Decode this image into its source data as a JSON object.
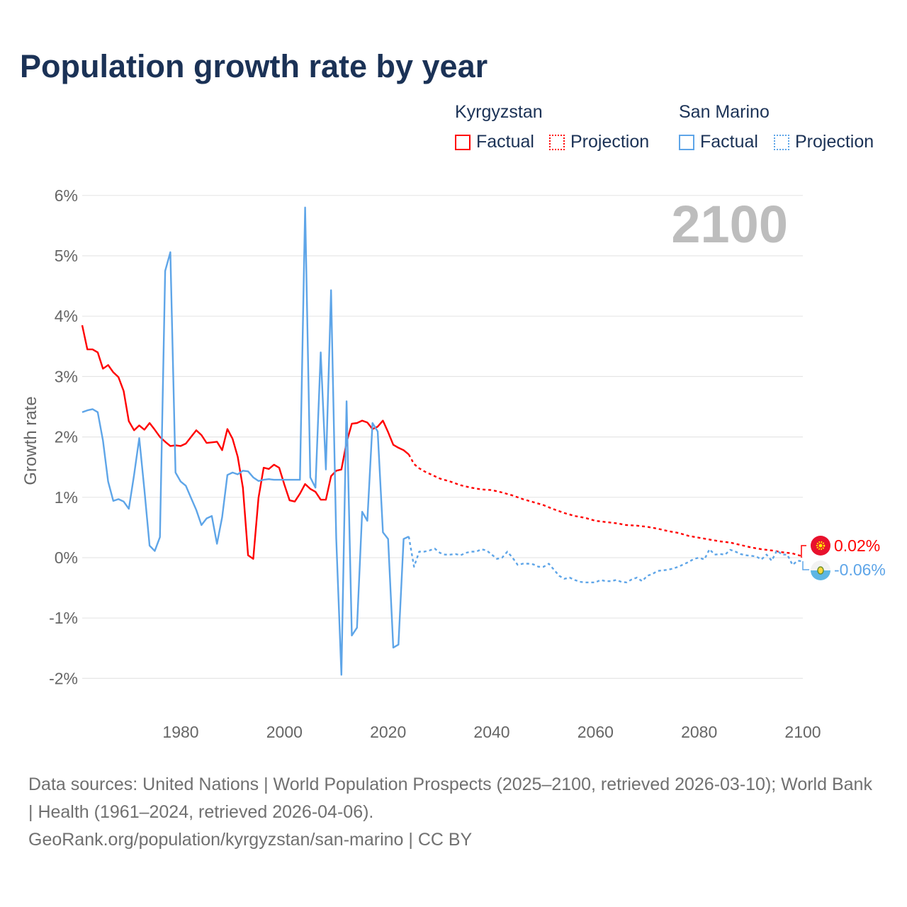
{
  "title": "Population growth rate by year",
  "legend": {
    "groups": [
      {
        "country": "Kyrgyzstan",
        "factual": "Factual",
        "projection": "Projection",
        "color": "#ff0000"
      },
      {
        "country": "San Marino",
        "factual": "Factual",
        "projection": "Projection",
        "color": "#5ea5e8"
      }
    ]
  },
  "footer": {
    "sources": "Data sources: United Nations | World Population Prospects (2025–2100, retrieved 2026-03-10); World Bank | Health (1961–2024, retrieved 2026-04-06).",
    "link": "GeoRank.org/population/kyrgyzstan/san-marino | CC BY"
  },
  "chart_data": {
    "type": "line",
    "title": "Population growth rate by year",
    "ylabel": "Growth rate",
    "xlabel": "",
    "year_display": "2100",
    "xlim": [
      1961,
      2100
    ],
    "ylim": [
      -2.5,
      6
    ],
    "yticks": [
      6,
      5,
      4,
      3,
      2,
      1,
      0,
      -1,
      -2
    ],
    "ytick_labels": [
      "6%",
      "5%",
      "4%",
      "3%",
      "2%",
      "1%",
      "0%",
      "-1%",
      "-2%"
    ],
    "xticks": [
      1980,
      2000,
      2020,
      2040,
      2060,
      2080,
      2100
    ],
    "xtick_labels": [
      "1980",
      "2000",
      "2020",
      "2040",
      "2060",
      "2080",
      "2100"
    ],
    "grid": true,
    "legend_position": "top-right",
    "end_labels": [
      {
        "series": "Kyrgyzstan",
        "text": "0.02%",
        "color": "#ff0000"
      },
      {
        "series": "San Marino",
        "text": "-0.06%",
        "color": "#5ea5e8"
      }
    ],
    "series": [
      {
        "name": "Kyrgyzstan",
        "kind": "factual",
        "color": "#ff0000",
        "x_start": 1961,
        "values": [
          3.85,
          3.45,
          3.45,
          3.4,
          3.13,
          3.19,
          3.07,
          2.99,
          2.76,
          2.26,
          2.11,
          2.19,
          2.12,
          2.23,
          2.12,
          2.0,
          1.92,
          1.85,
          1.86,
          1.85,
          1.89,
          2.0,
          2.11,
          2.03,
          1.9,
          1.91,
          1.92,
          1.78,
          2.13,
          1.97,
          1.67,
          1.16,
          0.04,
          -0.02,
          0.99,
          1.49,
          1.47,
          1.54,
          1.49,
          1.21,
          0.95,
          0.93,
          1.06,
          1.22,
          1.14,
          1.09,
          0.96,
          0.96,
          1.35,
          1.44,
          1.46,
          1.91,
          2.22,
          2.23,
          2.27,
          2.24,
          2.13,
          2.17,
          2.27,
          2.08,
          1.87,
          1.82,
          1.78,
          1.71
        ]
      },
      {
        "name": "Kyrgyzstan",
        "kind": "projection",
        "color": "#ff0000",
        "x": [
          2024,
          2025,
          2026,
          2027,
          2028,
          2029,
          2030,
          2032,
          2034,
          2036,
          2038,
          2040,
          2042,
          2044,
          2046,
          2048,
          2050,
          2052,
          2054,
          2056,
          2058,
          2060,
          2062,
          2064,
          2066,
          2068,
          2070,
          2072,
          2074,
          2076,
          2078,
          2080,
          2082,
          2084,
          2086,
          2088,
          2090,
          2092,
          2094,
          2096,
          2098,
          2100
        ],
        "values": [
          1.71,
          1.55,
          1.48,
          1.43,
          1.39,
          1.35,
          1.31,
          1.26,
          1.2,
          1.16,
          1.13,
          1.12,
          1.08,
          1.03,
          0.97,
          0.92,
          0.87,
          0.8,
          0.74,
          0.69,
          0.66,
          0.61,
          0.59,
          0.57,
          0.54,
          0.53,
          0.51,
          0.48,
          0.44,
          0.41,
          0.36,
          0.33,
          0.3,
          0.27,
          0.25,
          0.21,
          0.17,
          0.14,
          0.12,
          0.09,
          0.07,
          0.02
        ]
      },
      {
        "name": "San Marino",
        "kind": "factual",
        "color": "#5ea5e8",
        "x_start": 1961,
        "values": [
          2.41,
          2.44,
          2.46,
          2.41,
          1.94,
          1.26,
          0.94,
          0.97,
          0.93,
          0.81,
          1.37,
          1.98,
          1.12,
          0.2,
          0.11,
          0.34,
          4.75,
          5.06,
          1.41,
          1.26,
          1.19,
          0.99,
          0.79,
          0.54,
          0.65,
          0.69,
          0.23,
          0.67,
          1.37,
          1.41,
          1.38,
          1.44,
          1.43,
          1.33,
          1.27,
          1.29,
          1.3,
          1.29,
          1.29,
          1.29,
          1.29,
          1.29,
          1.29,
          5.8,
          1.33,
          1.16,
          3.4,
          1.46,
          4.43,
          0.32,
          -1.94,
          2.59,
          -1.29,
          -1.16,
          0.76,
          0.61,
          2.23,
          2.09,
          0.42,
          0.31,
          -1.49,
          -1.44,
          0.31,
          0.35
        ]
      },
      {
        "name": "San Marino",
        "kind": "projection",
        "color": "#5ea5e8",
        "x_start": 2024,
        "values": [
          0.35,
          -0.15,
          0.1,
          0.1,
          0.12,
          0.15,
          0.08,
          0.05,
          0.05,
          0.06,
          0.04,
          0.08,
          0.1,
          0.1,
          0.14,
          0.12,
          0.05,
          -0.02,
          0.0,
          0.1,
          0.0,
          -0.12,
          -0.1,
          -0.1,
          -0.11,
          -0.15,
          -0.15,
          -0.1,
          -0.2,
          -0.3,
          -0.35,
          -0.33,
          -0.37,
          -0.4,
          -0.41,
          -0.41,
          -0.41,
          -0.37,
          -0.39,
          -0.39,
          -0.37,
          -0.4,
          -0.41,
          -0.36,
          -0.33,
          -0.39,
          -0.3,
          -0.27,
          -0.22,
          -0.21,
          -0.2,
          -0.18,
          -0.15,
          -0.11,
          -0.07,
          -0.02,
          0.0,
          -0.03,
          0.14,
          0.05,
          0.06,
          0.05,
          0.13,
          0.1,
          0.06,
          0.04,
          0.03,
          0.02,
          -0.03,
          0.05,
          -0.05,
          0.12,
          0.05,
          0.05,
          -0.12,
          -0.05,
          -0.06
        ]
      }
    ]
  }
}
